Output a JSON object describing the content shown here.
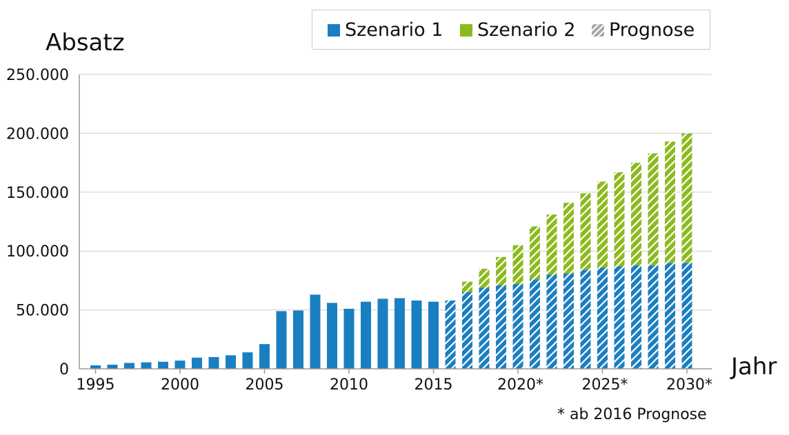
{
  "chart_data": {
    "type": "bar",
    "stacked": true,
    "ylabel": "Absatz",
    "xlabel": "Jahr",
    "ylim": [
      0,
      250000
    ],
    "yticks": [
      "0",
      "50.000",
      "100.000",
      "150.000",
      "200.000",
      "250.000"
    ],
    "ytick_values": [
      0,
      50000,
      100000,
      150000,
      200000,
      250000
    ],
    "xtick_labels": [
      {
        "year": 1995,
        "label": "1995"
      },
      {
        "year": 2000,
        "label": "2000"
      },
      {
        "year": 2005,
        "label": "2005"
      },
      {
        "year": 2010,
        "label": "2010"
      },
      {
        "year": 2015,
        "label": "2015"
      },
      {
        "year": 2020,
        "label": "2020*"
      },
      {
        "year": 2025,
        "label": "2025*"
      },
      {
        "year": 2030,
        "label": "2030*"
      }
    ],
    "grid": true,
    "legend_position": "top-right",
    "forecast_from": 2016,
    "categories": [
      1995,
      1996,
      1997,
      1998,
      1999,
      2000,
      2001,
      2002,
      2003,
      2004,
      2005,
      2006,
      2007,
      2008,
      2009,
      2010,
      2011,
      2012,
      2013,
      2014,
      2015,
      2016,
      2017,
      2018,
      2019,
      2020,
      2021,
      2022,
      2023,
      2024,
      2025,
      2026,
      2027,
      2028,
      2029,
      2030
    ],
    "series": [
      {
        "name": "Szenario 1",
        "color": "#1a7fc1",
        "values": [
          3000,
          3500,
          5000,
          5500,
          6000,
          7000,
          9500,
          10000,
          11500,
          14000,
          21000,
          49000,
          49500,
          63000,
          56000,
          51000,
          57000,
          59500,
          60000,
          58000,
          57000,
          58000,
          65000,
          69000,
          71000,
          72000,
          76000,
          80000,
          81000,
          84000,
          86000,
          87000,
          88000,
          88000,
          90000,
          90000
        ]
      },
      {
        "name": "Szenario 2",
        "color": "#8cba1e",
        "values": [
          0,
          0,
          0,
          0,
          0,
          0,
          0,
          0,
          0,
          0,
          0,
          0,
          0,
          0,
          0,
          0,
          0,
          0,
          0,
          0,
          0,
          0,
          9000,
          16000,
          24000,
          33000,
          45000,
          51000,
          60000,
          65000,
          73000,
          80000,
          87000,
          95000,
          103000,
          110000
        ]
      }
    ],
    "legend": [
      {
        "label": "Szenario 1",
        "swatch": "solid",
        "color": "#1a7fc1"
      },
      {
        "label": "Szenario 2",
        "swatch": "solid",
        "color": "#8cba1e"
      },
      {
        "label": "Prognose",
        "swatch": "hatched",
        "color": "#a8a8a8"
      }
    ],
    "footnote": "* ab 2016 Prognose"
  }
}
